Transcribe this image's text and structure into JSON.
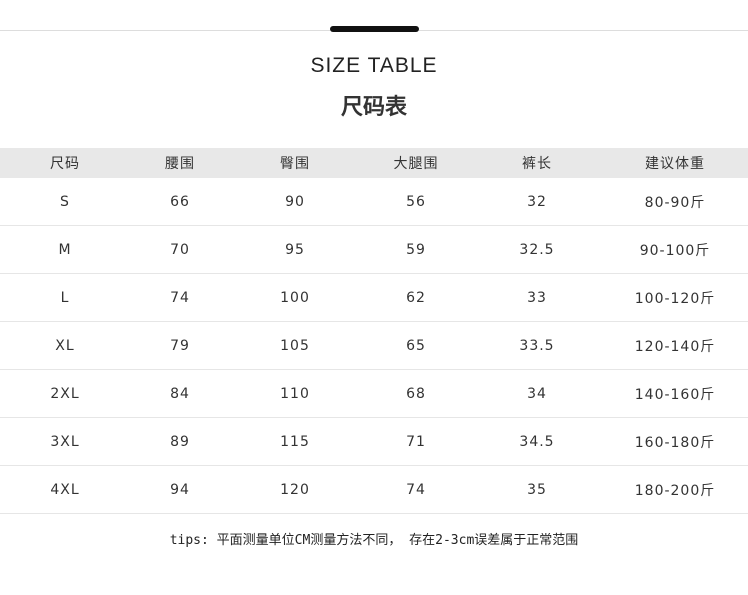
{
  "title_en": "SIZE TABLE",
  "title_cn": "尺码表",
  "headers": [
    "尺码",
    "腰围",
    "臀围",
    "大腿围",
    "裤长",
    "建议体重"
  ],
  "rows": [
    [
      "S",
      "66",
      "90",
      "56",
      "32",
      "80-90斤"
    ],
    [
      "M",
      "70",
      "95",
      "59",
      "32.5",
      "90-100斤"
    ],
    [
      "L",
      "74",
      "100",
      "62",
      "33",
      "100-120斤"
    ],
    [
      "XL",
      "79",
      "105",
      "65",
      "33.5",
      "120-140斤"
    ],
    [
      "2XL",
      "84",
      "110",
      "68",
      "34",
      "140-160斤"
    ],
    [
      "3XL",
      "89",
      "115",
      "71",
      "34.5",
      "160-180斤"
    ],
    [
      "4XL",
      "94",
      "120",
      "74",
      "35",
      "180-200斤"
    ]
  ],
  "tips": "tips: 平面测量单位CM测量方法不同， 存在2-3cm误差属于正常范围"
}
